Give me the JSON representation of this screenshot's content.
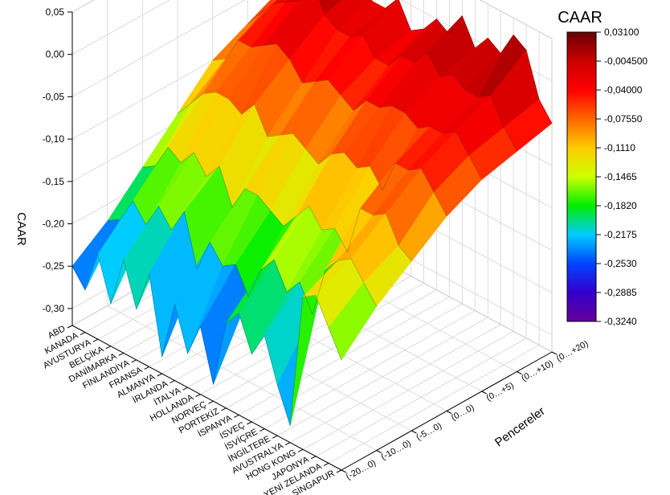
{
  "chart_data": {
    "type": "surface3d",
    "zlabel": "CAAR",
    "ylabel": "Pencereler",
    "zlim": [
      -0.32,
      0.05
    ],
    "z_ticks": [
      "0,05",
      "0,00",
      "-0,05",
      "-0,10",
      "-0,15",
      "-0,20",
      "-0,25",
      "-0,30"
    ],
    "z_tick_values": [
      0.05,
      0.0,
      -0.05,
      -0.1,
      -0.15,
      -0.2,
      -0.25,
      -0.3
    ],
    "countries": [
      "ABD",
      "KANADA",
      "AVUSTURYA",
      "BELÇİKA",
      "DANİMARKA",
      "FİNLANDİYA",
      "FRANSA",
      "ALMANYA",
      "İRLANDA",
      "İTALYA",
      "HOLLANDA",
      "NORVEÇ",
      "PORTEKİZ",
      "İSPANYA",
      "İSVEÇ",
      "İSVİÇRE",
      "İNGİLTERE",
      "AVUSTRALYA",
      "HONG KONG",
      "JAPONYA",
      "YENİ ZELANDA",
      "SİNGAPUR"
    ],
    "windows": [
      "(-20…0)",
      "(-10…0)",
      "(-5…0)",
      "(0…0)",
      "(0…+5)",
      "(0…+10)",
      "(0…+20)"
    ],
    "z": [
      [
        -0.25,
        -0.22,
        -0.18,
        -0.14,
        -0.1,
        -0.08,
        -0.06
      ],
      [
        -0.27,
        -0.21,
        -0.17,
        -0.12,
        -0.09,
        -0.06,
        -0.05
      ],
      [
        -0.22,
        -0.18,
        -0.14,
        -0.1,
        -0.06,
        -0.04,
        -0.03
      ],
      [
        -0.27,
        -0.2,
        -0.15,
        -0.09,
        -0.06,
        -0.03,
        -0.02
      ],
      [
        -0.21,
        -0.17,
        -0.13,
        -0.09,
        -0.05,
        -0.02,
        0.0
      ],
      [
        -0.26,
        -0.19,
        -0.15,
        -0.1,
        -0.04,
        0.01,
        0.02
      ],
      [
        -0.21,
        -0.16,
        -0.13,
        -0.08,
        -0.05,
        -0.02,
        -0.01
      ],
      [
        -0.3,
        -0.22,
        -0.17,
        -0.11,
        -0.07,
        -0.03,
        -0.02
      ],
      [
        -0.23,
        -0.18,
        -0.14,
        -0.1,
        -0.06,
        -0.03,
        -0.02
      ],
      [
        -0.28,
        -0.2,
        -0.14,
        -0.09,
        -0.05,
        -0.02,
        0.0
      ],
      [
        -0.24,
        -0.19,
        -0.15,
        -0.1,
        -0.06,
        -0.04,
        -0.03
      ],
      [
        -0.3,
        -0.22,
        -0.16,
        -0.11,
        -0.07,
        -0.04,
        -0.02
      ],
      [
        -0.22,
        -0.18,
        -0.14,
        -0.09,
        -0.05,
        -0.02,
        0.0
      ],
      [
        -0.2,
        -0.16,
        -0.12,
        -0.08,
        -0.05,
        -0.02,
        -0.01
      ],
      [
        -0.24,
        -0.19,
        -0.14,
        -0.09,
        -0.04,
        0.0,
        0.02
      ],
      [
        -0.21,
        -0.17,
        -0.13,
        -0.08,
        -0.04,
        -0.02,
        -0.01
      ],
      [
        -0.26,
        -0.2,
        -0.15,
        -0.1,
        -0.05,
        -0.01,
        0.01
      ],
      [
        -0.3,
        -0.14,
        -0.09,
        -0.06,
        -0.04,
        -0.02,
        0.0
      ],
      [
        -0.14,
        -0.12,
        -0.09,
        -0.06,
        -0.04,
        -0.02,
        0.03
      ],
      [
        -0.13,
        -0.11,
        -0.08,
        -0.05,
        -0.03,
        -0.01,
        0.02
      ],
      [
        -0.16,
        -0.13,
        -0.11,
        -0.07,
        -0.05,
        -0.04,
        -0.03
      ],
      [
        -0.19,
        -0.15,
        -0.12,
        -0.09,
        -0.07,
        -0.06,
        -0.05
      ]
    ],
    "colorbar": {
      "title": "CAAR",
      "labels": [
        "0,03100",
        "-0,004500",
        "-0,04000",
        "-0,07550",
        "-0,1110",
        "-0,1465",
        "-0,1820",
        "-0,2175",
        "-0,2530",
        "-0,2885",
        "-0,3240"
      ],
      "values": [
        0.031,
        -0.0045,
        -0.04,
        -0.0755,
        -0.111,
        -0.1465,
        -0.182,
        -0.2175,
        -0.253,
        -0.2885,
        -0.324
      ],
      "colors": [
        "#660000",
        "#cc0000",
        "#ff0000",
        "#ff6600",
        "#ffcc00",
        "#ccff00",
        "#00ee00",
        "#00ccff",
        "#0044ff",
        "#3300cc",
        "#660099"
      ]
    },
    "grid": true,
    "legend_position": "right"
  }
}
